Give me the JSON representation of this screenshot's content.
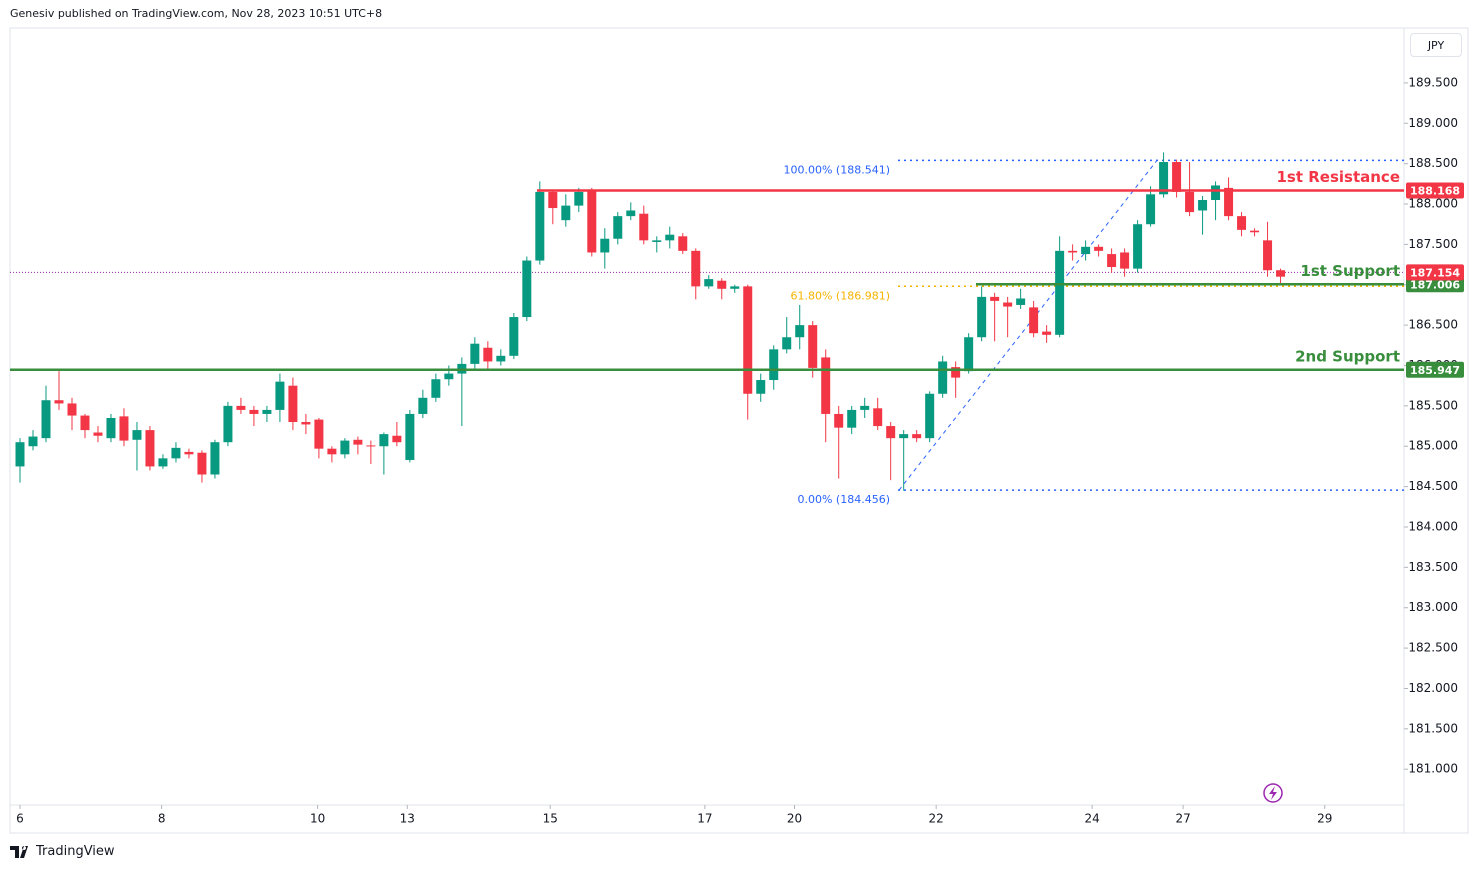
{
  "header": "Genesiv published on TradingView.com, Nov 28, 2023 10:51 UTC+8",
  "currency": "JPY",
  "brand": "TradingView",
  "chart_data": {
    "type": "candlestick",
    "up_color": "#089981",
    "down_color": "#f23645",
    "open": [
      184.75,
      185.0,
      185.1,
      185.57,
      185.53,
      185.38,
      185.17,
      185.1,
      185.37,
      185.08,
      185.2,
      184.75,
      184.85,
      184.93,
      184.92,
      184.65,
      185.05,
      185.5,
      185.45,
      185.4,
      185.45,
      185.75,
      185.3,
      185.33,
      184.97,
      184.9,
      185.08,
      185.01,
      185.0,
      185.13,
      184.83,
      185.4,
      185.6,
      185.83,
      185.9,
      186.02,
      186.22,
      186.05,
      186.12,
      186.6,
      187.3,
      188.15,
      187.8,
      187.98,
      188.17,
      187.4,
      187.57,
      187.85,
      187.88,
      187.53,
      187.55,
      187.6,
      187.42,
      186.98,
      187.05,
      186.95,
      186.98,
      185.65,
      185.82,
      186.2,
      186.35,
      186.5,
      186.1,
      185.4,
      185.23,
      185.45,
      185.47,
      185.25,
      185.1,
      185.15,
      185.1,
      185.65,
      185.98,
      185.93,
      186.35,
      186.85,
      186.78,
      186.75,
      186.72,
      186.42,
      186.38,
      187.42,
      187.38,
      187.47,
      187.38,
      187.4,
      187.2,
      187.75,
      188.12,
      188.52,
      188.15,
      187.92,
      188.05,
      188.2,
      187.85,
      187.67,
      187.55,
      187.18
    ],
    "high": [
      185.1,
      185.2,
      185.75,
      185.93,
      185.6,
      185.4,
      185.25,
      185.4,
      185.47,
      185.3,
      185.25,
      184.9,
      185.05,
      184.97,
      184.95,
      185.08,
      185.55,
      185.6,
      185.5,
      185.5,
      185.9,
      185.85,
      185.4,
      185.35,
      185.0,
      185.1,
      185.12,
      185.07,
      185.17,
      185.3,
      185.45,
      185.7,
      185.9,
      186.0,
      186.1,
      186.35,
      186.3,
      186.2,
      186.65,
      187.35,
      188.28,
      188.18,
      188.12,
      188.2,
      188.2,
      187.7,
      187.9,
      188.02,
      187.98,
      187.6,
      187.72,
      187.64,
      187.45,
      187.12,
      187.08,
      187.0,
      187.0,
      185.9,
      186.25,
      186.6,
      186.75,
      186.55,
      186.2,
      185.5,
      185.5,
      185.6,
      185.6,
      185.3,
      185.2,
      185.2,
      185.68,
      186.12,
      186.05,
      186.4,
      186.98,
      186.9,
      186.85,
      186.95,
      186.8,
      186.5,
      187.6,
      187.5,
      187.55,
      187.5,
      187.45,
      187.45,
      187.8,
      188.22,
      188.64,
      188.55,
      188.52,
      188.1,
      188.28,
      188.33,
      187.9,
      187.7,
      187.78,
      187.2
    ],
    "low": [
      184.55,
      184.95,
      185.05,
      185.45,
      185.2,
      185.1,
      185.05,
      185.05,
      185.0,
      184.7,
      184.7,
      184.72,
      184.8,
      184.85,
      184.55,
      184.6,
      185.0,
      185.4,
      185.25,
      185.3,
      185.3,
      185.2,
      185.15,
      184.85,
      184.8,
      184.85,
      184.9,
      184.78,
      184.65,
      185.0,
      184.8,
      185.35,
      185.55,
      185.75,
      185.25,
      185.95,
      185.95,
      186.0,
      186.08,
      186.55,
      187.25,
      187.75,
      187.72,
      187.9,
      187.35,
      187.2,
      187.5,
      187.8,
      187.5,
      187.4,
      187.45,
      187.38,
      186.82,
      186.95,
      186.82,
      186.9,
      185.33,
      185.55,
      185.7,
      186.15,
      186.2,
      185.85,
      185.05,
      184.6,
      185.15,
      185.35,
      185.2,
      184.58,
      184.45,
      185.05,
      185.05,
      185.6,
      185.6,
      185.9,
      186.3,
      186.3,
      186.35,
      186.7,
      186.35,
      186.28,
      186.35,
      187.3,
      187.3,
      187.35,
      187.15,
      187.1,
      187.15,
      187.72,
      188.08,
      188.08,
      187.85,
      187.62,
      187.8,
      187.8,
      187.6,
      187.6,
      187.1,
      187.02
    ],
    "close": [
      185.05,
      185.12,
      185.57,
      185.53,
      185.38,
      185.2,
      185.13,
      185.35,
      185.07,
      185.2,
      184.75,
      184.85,
      184.98,
      184.9,
      184.65,
      185.05,
      185.5,
      185.45,
      185.4,
      185.45,
      185.8,
      185.3,
      185.27,
      184.97,
      184.9,
      185.07,
      185.02,
      185.0,
      185.15,
      185.05,
      185.4,
      185.6,
      185.83,
      185.9,
      186.02,
      186.27,
      186.05,
      186.12,
      186.6,
      187.3,
      188.15,
      187.95,
      187.98,
      188.15,
      187.4,
      187.57,
      187.85,
      187.92,
      187.55,
      187.55,
      187.62,
      187.42,
      186.98,
      187.07,
      186.95,
      186.98,
      185.65,
      185.82,
      186.2,
      186.35,
      186.5,
      185.97,
      185.4,
      185.23,
      185.45,
      185.5,
      185.25,
      185.1,
      185.15,
      185.1,
      185.65,
      186.05,
      185.85,
      186.35,
      186.85,
      186.8,
      186.73,
      186.83,
      186.4,
      186.38,
      187.42,
      187.4,
      187.47,
      187.42,
      187.22,
      187.2,
      187.75,
      188.12,
      188.52,
      188.15,
      187.9,
      188.05,
      188.23,
      187.85,
      187.68,
      187.65,
      187.18,
      187.1
    ],
    "ylim": [
      180.21,
      190.18
    ],
    "yticks": [
      {
        "value": 181.0,
        "label": "181.000"
      },
      {
        "value": 181.5,
        "label": "181.500"
      },
      {
        "value": 182.0,
        "label": "182.000"
      },
      {
        "value": 182.5,
        "label": "182.500"
      },
      {
        "value": 183.0,
        "label": "183.000"
      },
      {
        "value": 183.5,
        "label": "183.500"
      },
      {
        "value": 184.0,
        "label": "184.000"
      },
      {
        "value": 184.5,
        "label": "184.500"
      },
      {
        "value": 185.0,
        "label": "185.000"
      },
      {
        "value": 185.5,
        "label": "185.500"
      },
      {
        "value": 186.0,
        "label": "186.000"
      },
      {
        "value": 186.5,
        "label": "186.500"
      },
      {
        "value": 187.0,
        "label": "187.000"
      },
      {
        "value": 187.5,
        "label": "187.500"
      },
      {
        "value": 188.0,
        "label": "188.000"
      },
      {
        "value": 188.5,
        "label": "188.500"
      },
      {
        "value": 189.0,
        "label": "189.000"
      },
      {
        "value": 189.5,
        "label": "189.500"
      }
    ],
    "xlim": [
      -0.77,
      106.5
    ],
    "xticks": [
      {
        "value": 0,
        "label": "6"
      },
      {
        "value": 10.9,
        "label": "8"
      },
      {
        "value": 22.9,
        "label": "10"
      },
      {
        "value": 29.8,
        "label": "13"
      },
      {
        "value": 40.8,
        "label": "15"
      },
      {
        "value": 52.7,
        "label": "17"
      },
      {
        "value": 59.6,
        "label": "20"
      },
      {
        "value": 70.5,
        "label": "22"
      },
      {
        "value": 82.5,
        "label": "24"
      },
      {
        "value": 89.5,
        "label": "27"
      },
      {
        "value": 100.4,
        "label": "29"
      }
    ],
    "levels": [
      {
        "label": "1st Resistance",
        "value": 188.168,
        "color": "#f23645"
      },
      {
        "label": "1st Support",
        "value": 187.006,
        "color": "#388e3c"
      },
      {
        "label": "2nd Support",
        "value": 185.947,
        "color": "#388e3c"
      }
    ],
    "last_price": {
      "value": 187.154,
      "color": "#f23645"
    },
    "fib": [
      {
        "label": "100.00% (188.541)",
        "value": 188.541,
        "color": "#2962ff"
      },
      {
        "label": "61.80% (186.981)",
        "value": 186.981,
        "color": "#f5b300"
      },
      {
        "label": "0.00% (184.456)",
        "value": 184.456,
        "color": "#2962ff"
      }
    ]
  }
}
